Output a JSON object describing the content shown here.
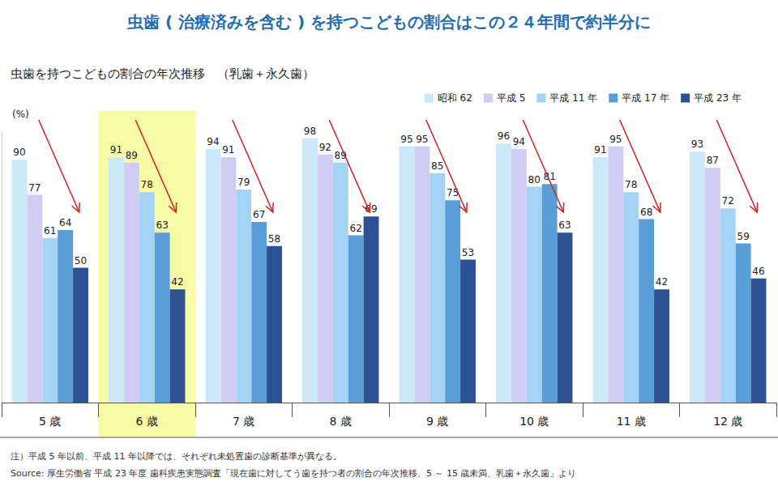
{
  "chart_data": {
    "type": "bar",
    "title": "虫歯 ( 治療済みを含む ) を持つこどもの割合はこの２４年間で約半分に",
    "subtitle": "虫歯を持つこどもの割合の年次推移　（乳歯＋永久歯）",
    "y_label": "(%)",
    "categories": [
      "5 歳",
      "6 歳",
      "7 歳",
      "8 歳",
      "9 歳",
      "10 歳",
      "11 歳",
      "12 歳"
    ],
    "series": [
      {
        "name": "昭和 62",
        "color": "#cce9f9",
        "values": [
          90,
          91,
          94,
          98,
          95,
          96,
          91,
          93
        ]
      },
      {
        "name": "平成 5",
        "color": "#d0ccf4",
        "values": [
          77,
          89,
          91,
          92,
          95,
          94,
          95,
          87
        ]
      },
      {
        "name": "平成 11 年",
        "color": "#a5d3f6",
        "values": [
          61,
          78,
          79,
          89,
          85,
          80,
          78,
          72
        ]
      },
      {
        "name": "平成 17 年",
        "color": "#5a9ed7",
        "values": [
          64,
          63,
          67,
          62,
          75,
          81,
          68,
          59
        ]
      },
      {
        "name": "平成 23 年",
        "color": "#2d5192",
        "values": [
          50,
          42,
          58,
          69,
          53,
          63,
          42,
          46
        ]
      }
    ],
    "ylim": [
      0,
      100
    ],
    "tick_labels": "x",
    "data_labels": true,
    "legend": "top-right",
    "grid": false,
    "annotations": [
      "注）平成 5 年以前、平成 11 年以降では、それぞれ未処置歯の診断基準が異なる。",
      "Source: 厚生労働省 平成 23 年度 歯科疾患実態調査「現在歯に対してう歯を持つ者の割合の年次推移、5 ～ 15 歳未満、乳歯＋永久歯」より"
    ]
  }
}
